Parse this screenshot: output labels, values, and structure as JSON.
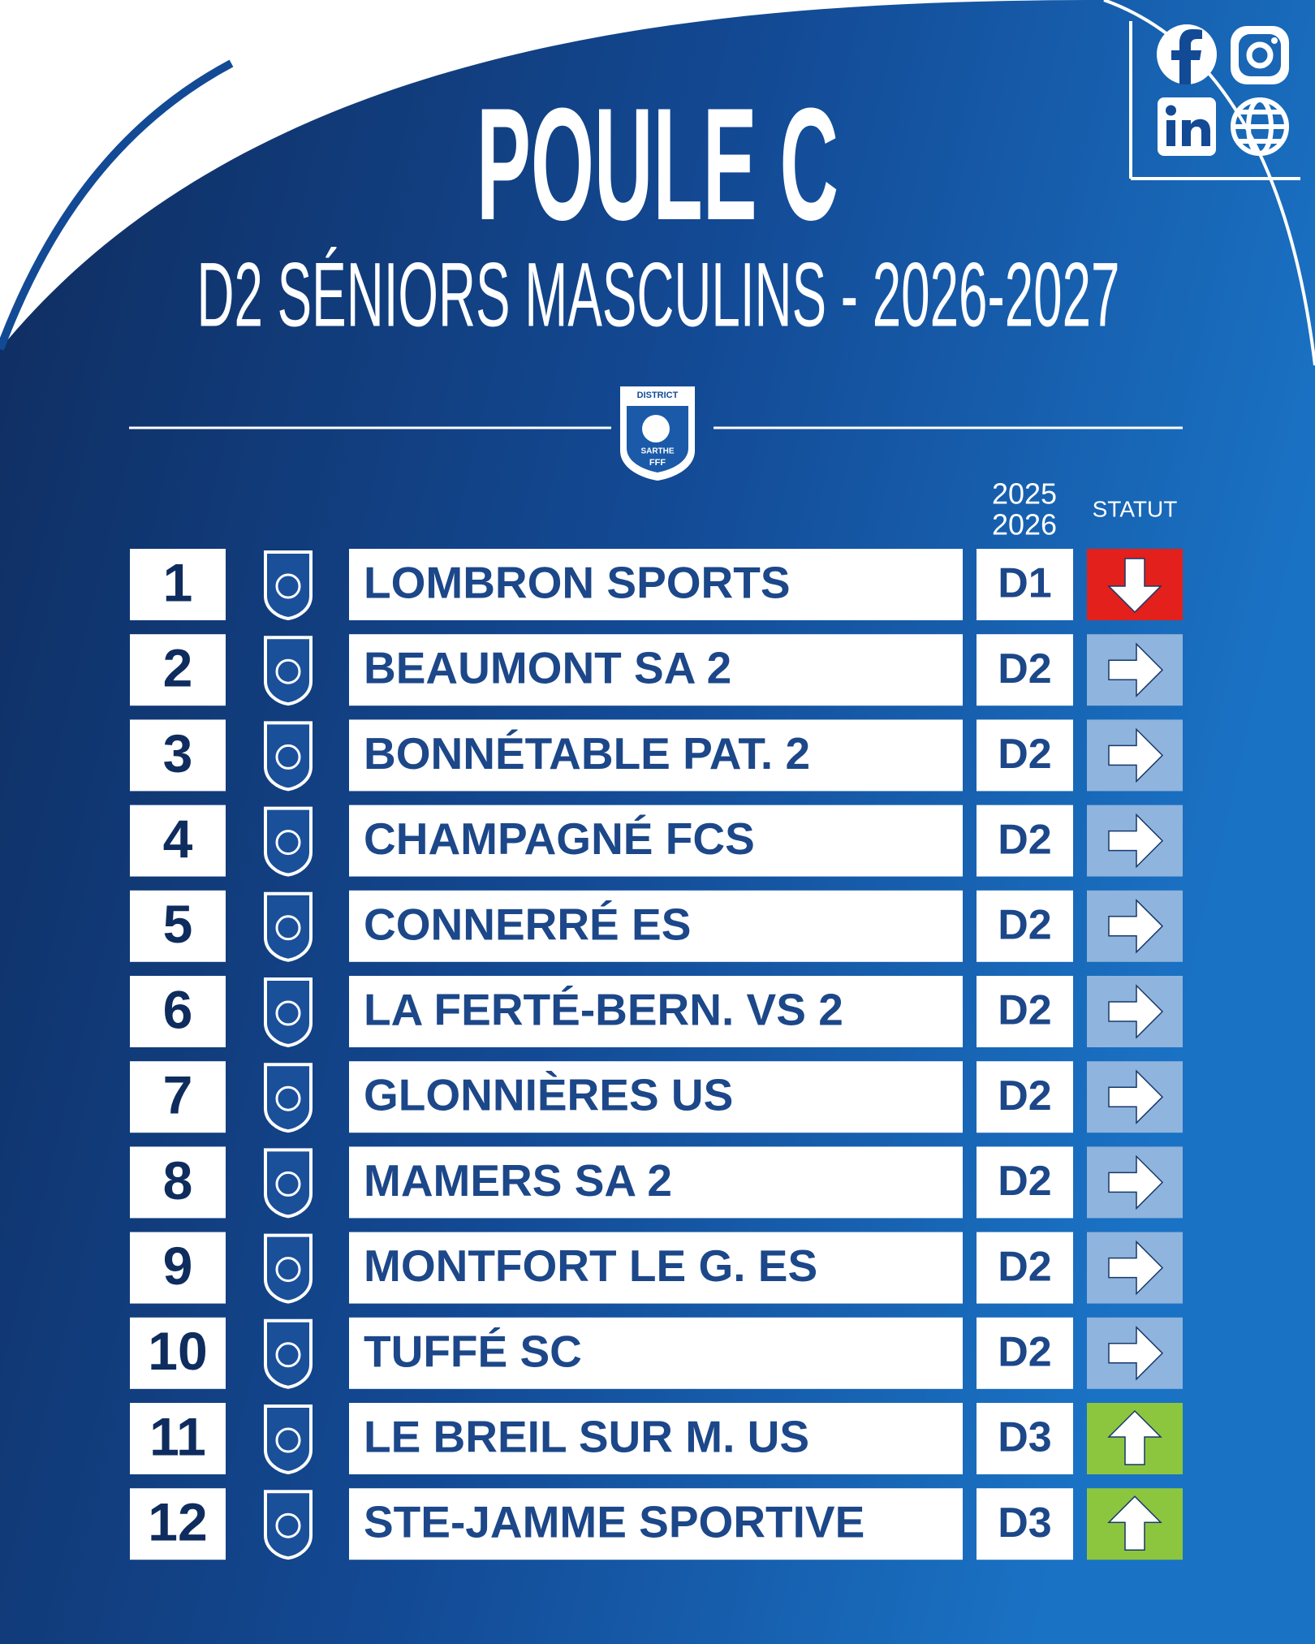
{
  "header": {
    "title": "POULE C",
    "subtitle": "D2 SÉNIORS MASCULINS - 2026-2027",
    "logo": [
      "DISTRICT",
      "SARTHE",
      "FFF"
    ]
  },
  "table": {
    "columns": {
      "season": [
        "2025",
        "2026"
      ],
      "status": "STATUT"
    },
    "rows": [
      {
        "rank": 1,
        "team": "LOMBRON SPORTS",
        "division": "D1",
        "status": "down"
      },
      {
        "rank": 2,
        "team": "BEAUMONT SA 2",
        "division": "D2",
        "status": "same"
      },
      {
        "rank": 3,
        "team": "BONNÉTABLE PAT. 2",
        "division": "D2",
        "status": "same"
      },
      {
        "rank": 4,
        "team": "CHAMPAGNÉ FCS",
        "division": "D2",
        "status": "same"
      },
      {
        "rank": 5,
        "team": "CONNERRÉ ES",
        "division": "D2",
        "status": "same"
      },
      {
        "rank": 6,
        "team": "LA FERTÉ-BERN. VS 2",
        "division": "D2",
        "status": "same"
      },
      {
        "rank": 7,
        "team": "GLONNIÈRES US",
        "division": "D2",
        "status": "same"
      },
      {
        "rank": 8,
        "team": "MAMERS SA 2",
        "division": "D2",
        "status": "same"
      },
      {
        "rank": 9,
        "team": "MONTFORT LE G. ES",
        "division": "D2",
        "status": "same"
      },
      {
        "rank": 10,
        "team": "TUFFÉ SC",
        "division": "D2",
        "status": "same"
      },
      {
        "rank": 11,
        "team": "LE BREIL SUR M. US",
        "division": "D3",
        "status": "up"
      },
      {
        "rank": 12,
        "team": "STE-JAMME SPORTIVE",
        "division": "D3",
        "status": "up"
      }
    ]
  }
}
